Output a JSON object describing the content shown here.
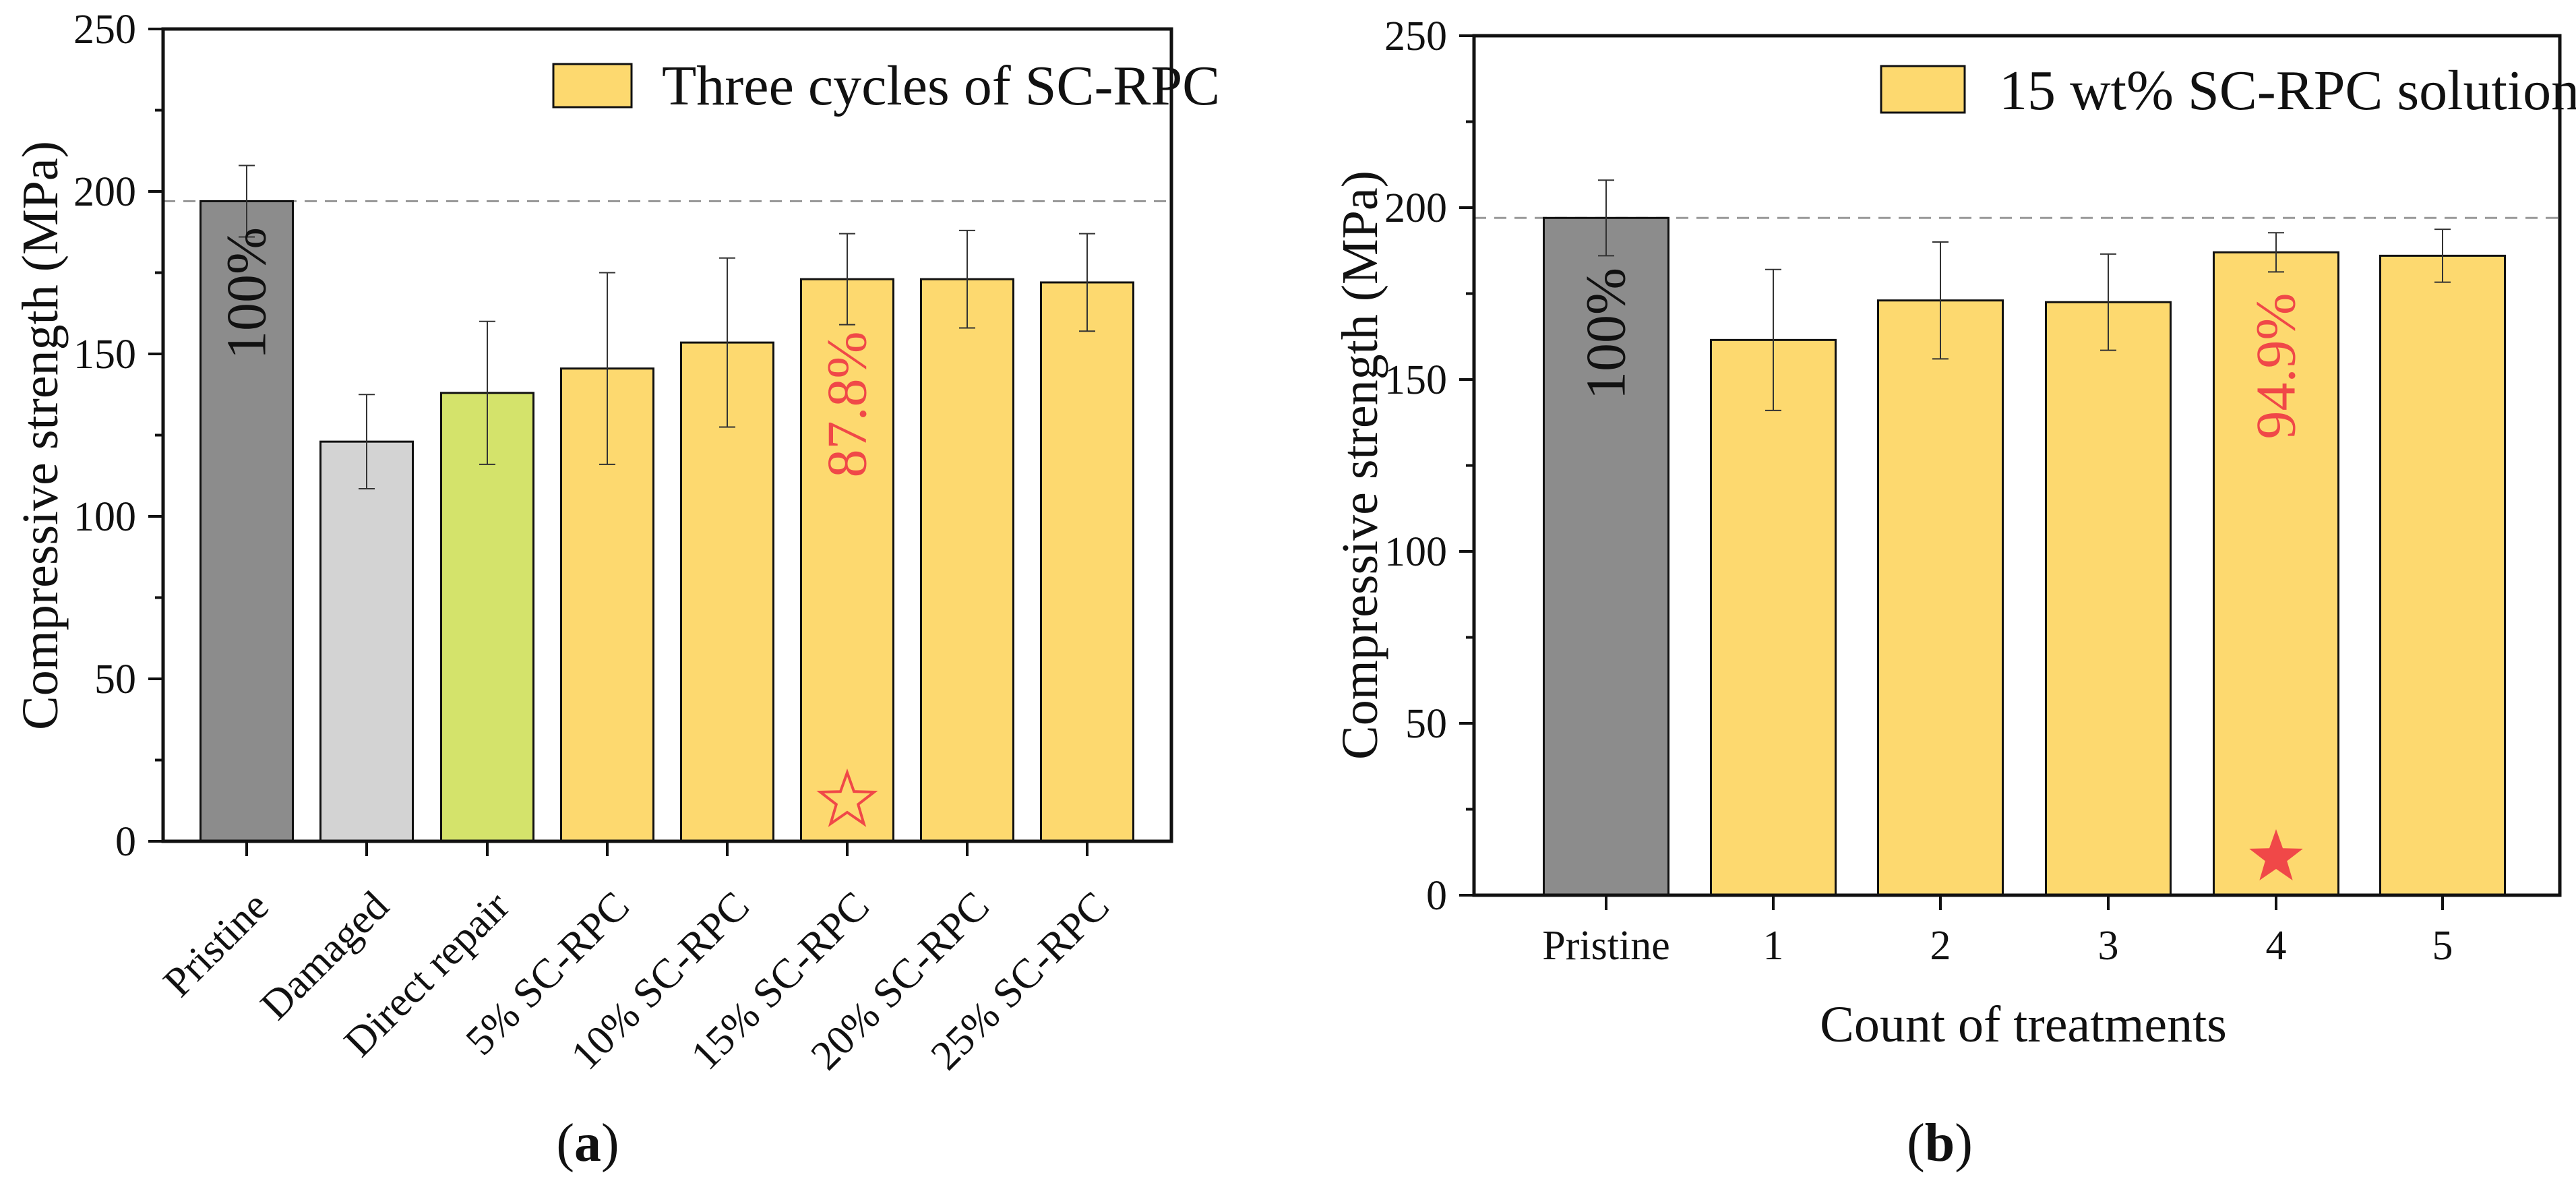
{
  "chart_data": [
    {
      "type": "bar",
      "panel_label": "(a)",
      "panel_letter": "a",
      "title": "",
      "xlabel": "",
      "ylabel": "Compressive strength (MPa)",
      "ylim": [
        0,
        250
      ],
      "yticks": [
        0,
        50,
        100,
        150,
        200,
        250
      ],
      "categories": [
        "Pristine",
        "Damaged",
        "Direct repair",
        "5% SC-RPC",
        "10% SC-RPC",
        "15% SC-RPC",
        "20% SC-RPC",
        "25% SC-RPC"
      ],
      "values": [
        197,
        123,
        138,
        145.5,
        153.5,
        173,
        173,
        172
      ],
      "errors": [
        11,
        14.5,
        22,
        29.5,
        26,
        14,
        15,
        15
      ],
      "colors": [
        "#8c8c8c",
        "#d3d3d3",
        "#d4e36b",
        "#fdd96f",
        "#fdd96f",
        "#fdd96f",
        "#fdd96f",
        "#fdd96f"
      ],
      "reference_line": 197,
      "legend": {
        "label": "Three cycles of SC-RPC",
        "color": "#fdd96f",
        "position": "top-right"
      },
      "annotations": [
        {
          "category": "Pristine",
          "text": "100%",
          "color": "#111111"
        },
        {
          "category": "15% SC-RPC",
          "text": "87.8%",
          "color": "#f04848"
        }
      ],
      "star": {
        "category": "15% SC-RPC",
        "style": "outline",
        "color": "#f04848"
      }
    },
    {
      "type": "bar",
      "panel_label": "(b)",
      "panel_letter": "b",
      "title": "",
      "xlabel": "Count of treatments",
      "ylabel": "Compressive strength (MPa)",
      "ylim": [
        0,
        250
      ],
      "yticks": [
        0,
        50,
        100,
        150,
        200,
        250
      ],
      "categories": [
        "Pristine",
        "1",
        "2",
        "3",
        "4",
        "5"
      ],
      "values": [
        197,
        161.5,
        173,
        172.5,
        187,
        186
      ],
      "errors": [
        11,
        20.5,
        17,
        14,
        5.7,
        7.7
      ],
      "colors": [
        "#8c8c8c",
        "#fdd96f",
        "#fdd96f",
        "#fdd96f",
        "#fdd96f",
        "#fdd96f"
      ],
      "reference_line": 197,
      "legend": {
        "label": "15 wt% SC-RPC solution",
        "color": "#fdd96f",
        "position": "top-right"
      },
      "annotations": [
        {
          "category": "Pristine",
          "text": "100%",
          "color": "#111111"
        },
        {
          "category": "4",
          "text": "94.9%",
          "color": "#f04848"
        }
      ],
      "star": {
        "category": "4",
        "style": "filled",
        "color": "#f04848"
      }
    }
  ]
}
